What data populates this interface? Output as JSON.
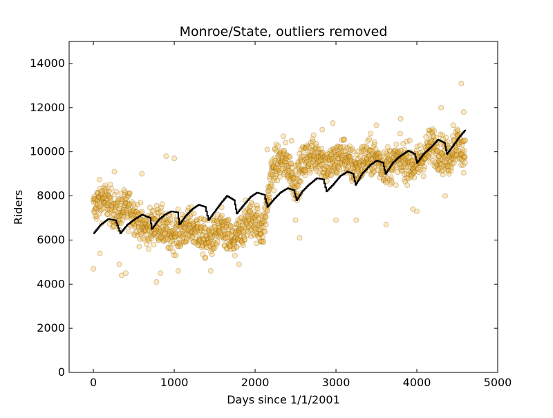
{
  "colors": {
    "scatter_fill": "#f5b83d",
    "scatter_stroke": "#8a6410",
    "trend_line": "#000000",
    "axes": "#000000",
    "background": "#ffffff"
  },
  "chart_data": {
    "type": "scatter",
    "title": "Monroe/State, outliers removed",
    "xlabel": "Days since 1/1/2001",
    "ylabel": "Riders",
    "xlim": [
      -300,
      5000
    ],
    "ylim": [
      0,
      15000
    ],
    "xticks": [
      0,
      1000,
      2000,
      3000,
      4000,
      5000
    ],
    "yticks": [
      0,
      2000,
      4000,
      6000,
      8000,
      10000,
      12000,
      14000
    ],
    "xtick_labels": [
      "0",
      "1000",
      "2000",
      "3000",
      "4000",
      "5000"
    ],
    "ytick_labels": [
      "0",
      "2000",
      "4000",
      "6000",
      "8000",
      "10000",
      "12000",
      "14000"
    ],
    "grid": false,
    "legend": "none",
    "series": [
      {
        "kind": "scatter",
        "description": "daily riders (dense cloud, one point per day, approx 0-4600); markers shown semi-transparent",
        "seasonal_profile": [
          [
            0,
            7400
          ],
          [
            100,
            7600
          ],
          [
            200,
            7700
          ],
          [
            300,
            7500
          ],
          [
            400,
            7300
          ],
          [
            500,
            7000
          ],
          [
            600,
            6800
          ],
          [
            700,
            6700
          ],
          [
            800,
            6500
          ],
          [
            900,
            6300
          ],
          [
            1000,
            6600
          ],
          [
            1100,
            6400
          ],
          [
            1200,
            6300
          ],
          [
            1300,
            6500
          ],
          [
            1400,
            6200
          ],
          [
            1500,
            6000
          ],
          [
            1600,
            6300
          ],
          [
            1700,
            6200
          ],
          [
            1800,
            6300
          ],
          [
            1900,
            6600
          ],
          [
            2000,
            6900
          ],
          [
            2100,
            6700
          ],
          [
            2200,
            8900
          ],
          [
            2300,
            9300
          ],
          [
            2400,
            9600
          ],
          [
            2500,
            8800
          ],
          [
            2600,
            9300
          ],
          [
            2700,
            9700
          ],
          [
            2800,
            10100
          ],
          [
            2900,
            9400
          ],
          [
            3000,
            9300
          ],
          [
            3100,
            9900
          ],
          [
            3200,
            9600
          ],
          [
            3300,
            9300
          ],
          [
            3400,
            9500
          ],
          [
            3500,
            9900
          ],
          [
            3600,
            9600
          ],
          [
            3700,
            9200
          ],
          [
            3800,
            9500
          ],
          [
            3900,
            9800
          ],
          [
            4000,
            9400
          ],
          [
            4100,
            9600
          ],
          [
            4200,
            10400
          ],
          [
            4300,
            10200
          ],
          [
            4400,
            9600
          ],
          [
            4500,
            10200
          ],
          [
            4600,
            9900
          ]
        ],
        "outlier_points": [
          [
            0,
            4700
          ],
          [
            80,
            5400
          ],
          [
            350,
            4400
          ],
          [
            400,
            4500
          ],
          [
            320,
            4900
          ],
          [
            780,
            4100
          ],
          [
            830,
            4500
          ],
          [
            1050,
            4600
          ],
          [
            1450,
            4600
          ],
          [
            1800,
            4900
          ],
          [
            1750,
            5300
          ],
          [
            2550,
            6100
          ],
          [
            2500,
            6900
          ],
          [
            3000,
            6900
          ],
          [
            3250,
            6900
          ],
          [
            3620,
            6700
          ],
          [
            3950,
            7400
          ],
          [
            4000,
            7300
          ],
          [
            4350,
            8000
          ],
          [
            4550,
            13100
          ],
          [
            4580,
            11800
          ],
          [
            4300,
            12000
          ],
          [
            4450,
            11200
          ],
          [
            2830,
            11000
          ],
          [
            2960,
            11300
          ],
          [
            3500,
            11200
          ],
          [
            3800,
            11500
          ],
          [
            900,
            9800
          ],
          [
            600,
            9000
          ],
          [
            260,
            9100
          ],
          [
            1000,
            9700
          ],
          [
            2150,
            10100
          ],
          [
            2350,
            10700
          ],
          [
            2450,
            10500
          ]
        ]
      },
      {
        "kind": "step-line",
        "description": "trend (step line)",
        "points": [
          [
            0,
            6300
          ],
          [
            90,
            6700
          ],
          [
            180,
            6950
          ],
          [
            270,
            6900
          ],
          [
            330,
            6300
          ],
          [
            420,
            6700
          ],
          [
            510,
            6950
          ],
          [
            600,
            7150
          ],
          [
            700,
            7000
          ],
          [
            720,
            6500
          ],
          [
            800,
            6900
          ],
          [
            880,
            7150
          ],
          [
            960,
            7300
          ],
          [
            1040,
            7250
          ],
          [
            1060,
            6700
          ],
          [
            1140,
            7100
          ],
          [
            1220,
            7400
          ],
          [
            1300,
            7600
          ],
          [
            1380,
            7500
          ],
          [
            1420,
            6900
          ],
          [
            1500,
            7300
          ],
          [
            1580,
            7700
          ],
          [
            1650,
            8000
          ],
          [
            1740,
            7800
          ],
          [
            1770,
            7200
          ],
          [
            1860,
            7600
          ],
          [
            1940,
            7950
          ],
          [
            2020,
            8150
          ],
          [
            2110,
            8050
          ],
          [
            2150,
            7500
          ],
          [
            2230,
            7850
          ],
          [
            2310,
            8150
          ],
          [
            2400,
            8350
          ],
          [
            2480,
            8250
          ],
          [
            2510,
            7800
          ],
          [
            2580,
            8200
          ],
          [
            2660,
            8500
          ],
          [
            2760,
            8800
          ],
          [
            2840,
            8750
          ],
          [
            2880,
            8200
          ],
          [
            2960,
            8500
          ],
          [
            3050,
            8900
          ],
          [
            3140,
            9100
          ],
          [
            3210,
            9000
          ],
          [
            3240,
            8500
          ],
          [
            3320,
            9000
          ],
          [
            3420,
            9400
          ],
          [
            3500,
            9600
          ],
          [
            3580,
            9500
          ],
          [
            3610,
            9000
          ],
          [
            3700,
            9500
          ],
          [
            3790,
            9800
          ],
          [
            3890,
            10050
          ],
          [
            3970,
            9900
          ],
          [
            4000,
            9500
          ],
          [
            4080,
            9900
          ],
          [
            4170,
            10200
          ],
          [
            4260,
            10550
          ],
          [
            4340,
            10400
          ],
          [
            4370,
            9900
          ],
          [
            4450,
            10300
          ],
          [
            4530,
            10700
          ],
          [
            4600,
            11000
          ]
        ]
      }
    ]
  }
}
